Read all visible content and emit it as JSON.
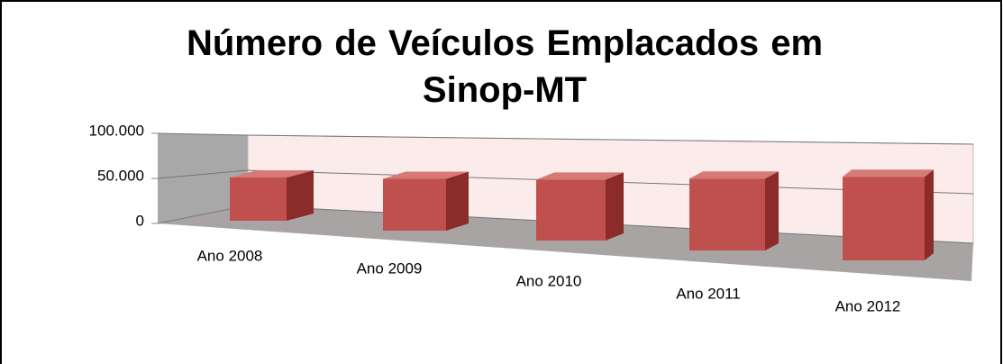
{
  "chart_data": {
    "type": "bar3d",
    "title": "Número de Veículos Emplacados em Sinop-MT",
    "categories": [
      "Ano 2008",
      "Ano 2009",
      "Ano 2010",
      "Ano 2011",
      "Ano 2012"
    ],
    "values": [
      48000,
      50000,
      52000,
      55000,
      58000
    ],
    "color": "#c0504d",
    "ylim": [
      0,
      100000
    ],
    "yticks": [
      0,
      {
        "value": 50000,
        "label": "50.000"
      },
      {
        "value": 100000,
        "label": "100.000"
      }
    ],
    "grid": true
  }
}
